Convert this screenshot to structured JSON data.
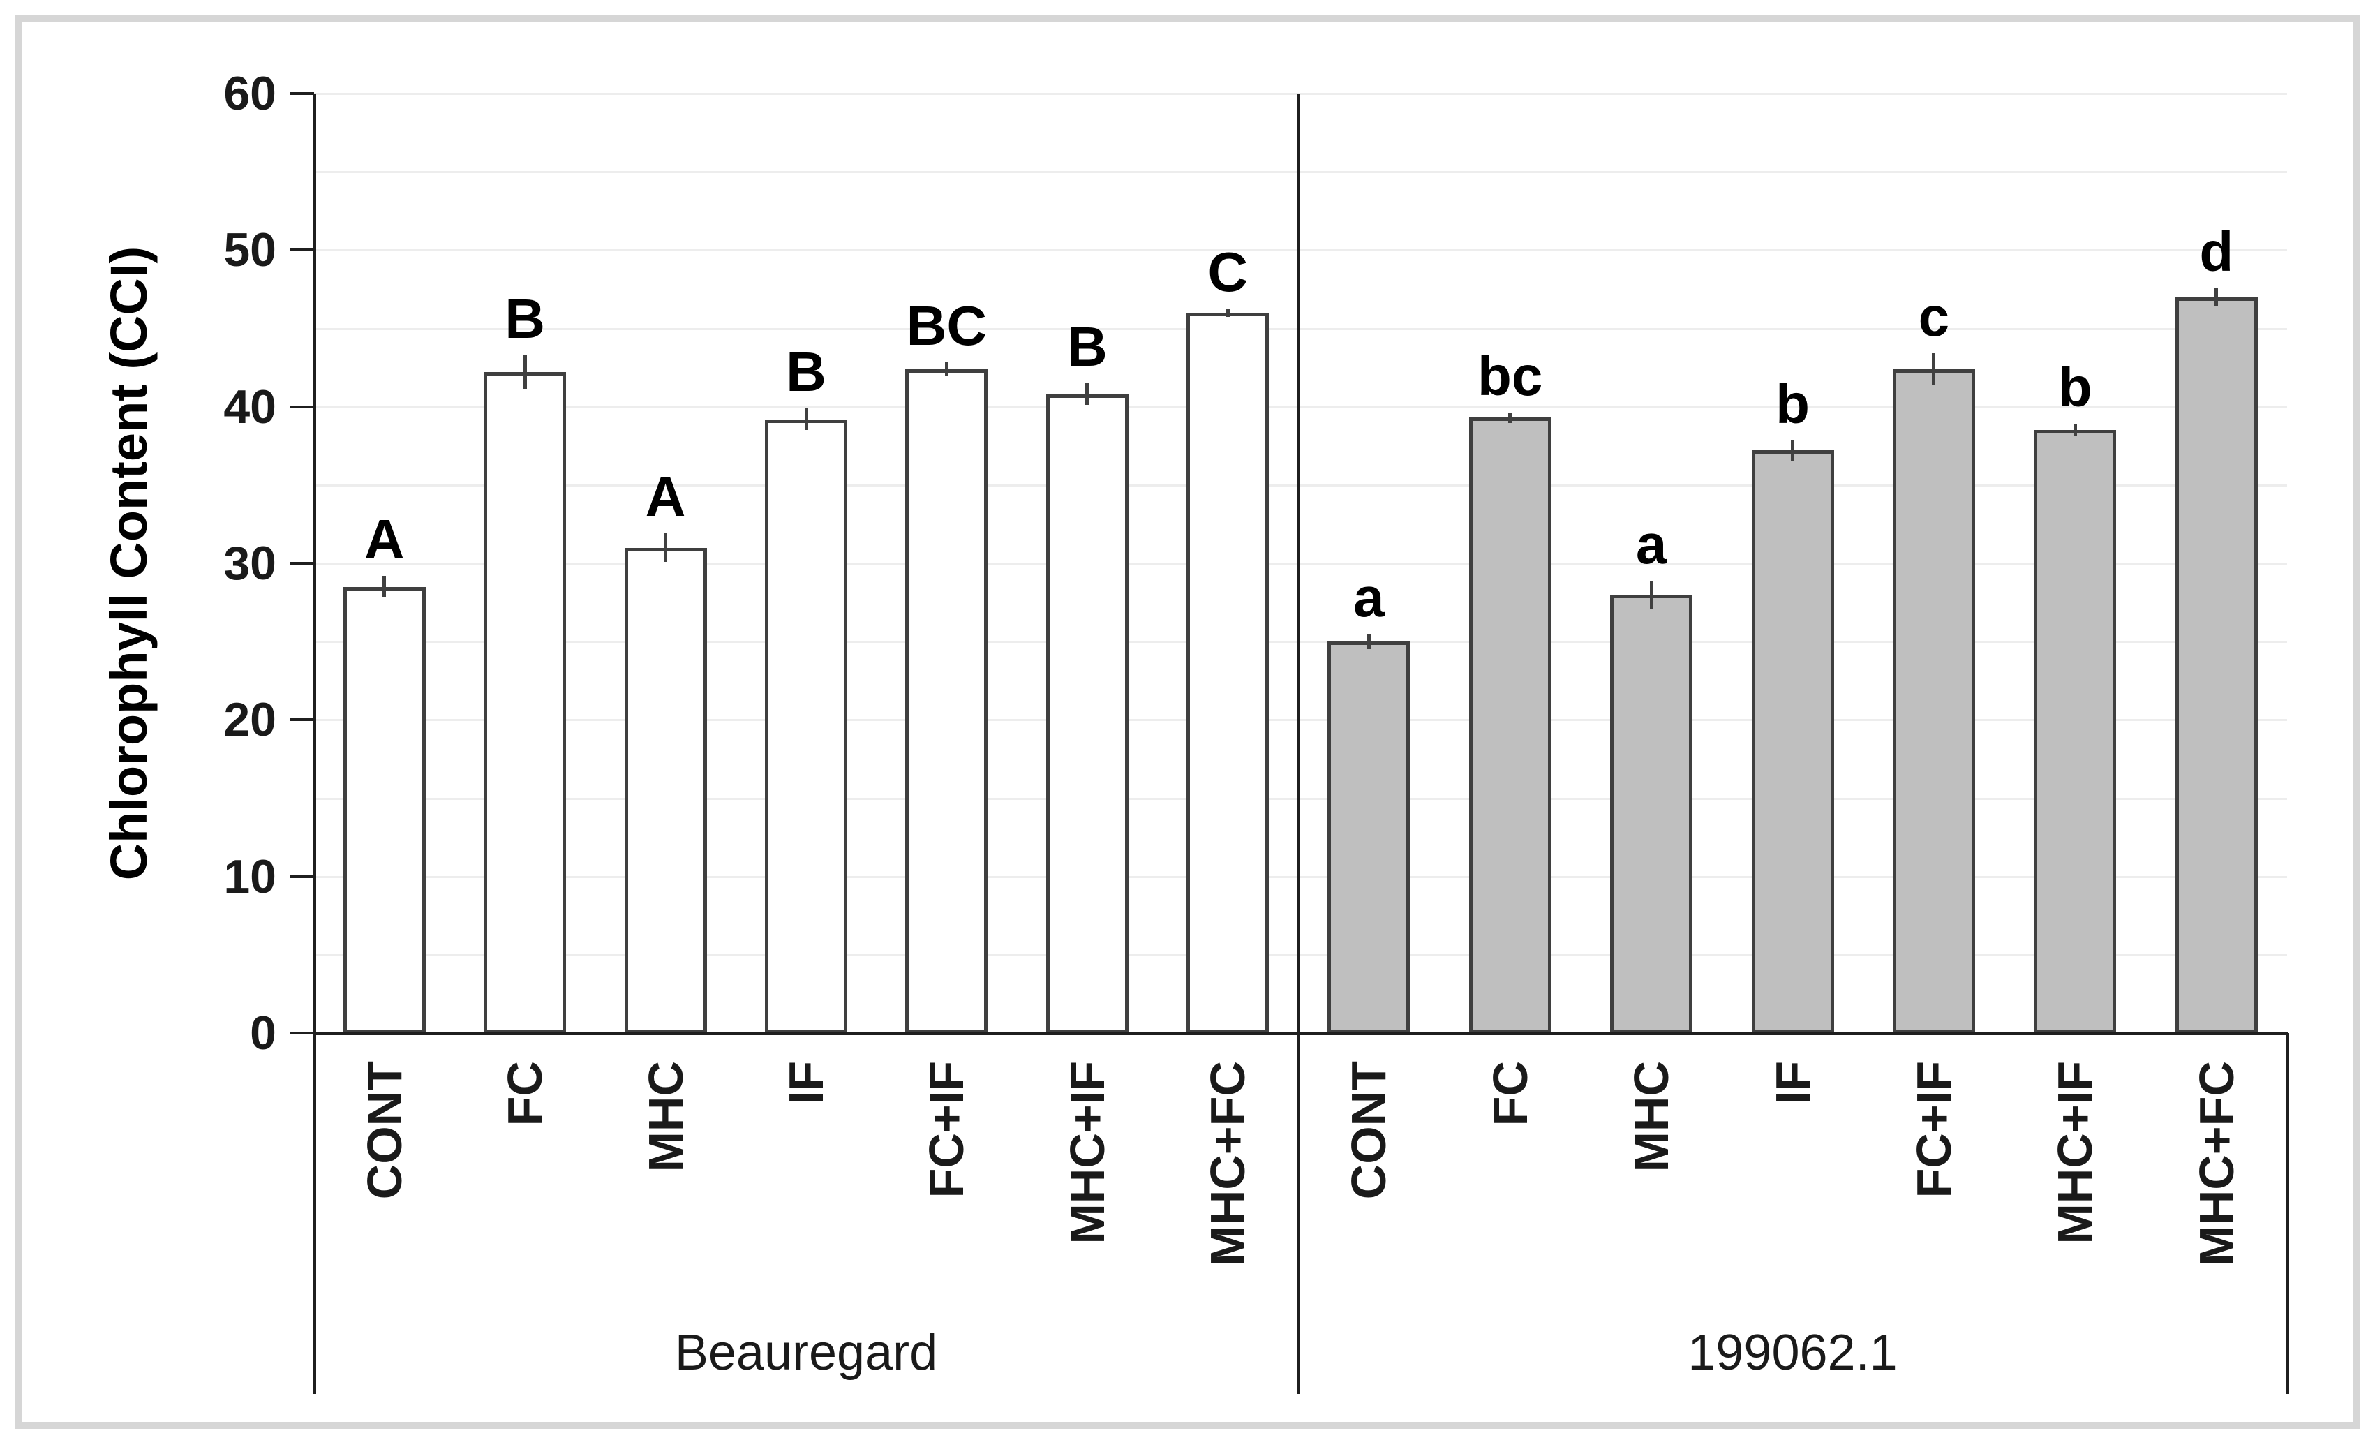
{
  "figure": {
    "background": "#FFFFFF",
    "border_color": "#D6D6D6"
  },
  "chart_data": {
    "type": "bar",
    "title": "",
    "xlabel": "",
    "ylabel": "Chlorophyll Content (CCI)",
    "ylim": [
      0,
      60
    ],
    "yticks": [
      "0",
      "10",
      "20",
      "30",
      "40",
      "50",
      "60"
    ],
    "ytick_step": 10,
    "gridline_step": 5,
    "grid": true,
    "legend_position": "none",
    "error_bars": true,
    "categories": [
      "CONT",
      "FC",
      "MHC",
      "IF",
      "FC+IF",
      "MHC+IF",
      "MHC+FC"
    ],
    "groups": [
      {
        "name": "Beauregard",
        "fill": "#FFFFFF",
        "values": [
          28.5,
          42.2,
          31.0,
          39.2,
          42.4,
          40.8,
          46.0
        ],
        "errors": [
          0.7,
          1.1,
          0.9,
          0.7,
          0.45,
          0.7,
          0.25
        ],
        "letters": [
          "A",
          "B",
          "A",
          "B",
          "BC",
          "B",
          "C"
        ]
      },
      {
        "name": "199062.1",
        "fill": "#BFBFBF",
        "values": [
          25.0,
          39.3,
          28.0,
          37.2,
          42.4,
          38.5,
          47.0
        ],
        "errors": [
          0.5,
          0.35,
          0.9,
          0.65,
          1.0,
          0.4,
          0.55
        ],
        "letters": [
          "a",
          "bc",
          "a",
          "b",
          "c",
          "b",
          "d"
        ]
      }
    ],
    "colors": {
      "bar_outline": "#3F3F3F",
      "axis": "#1F1F1F",
      "gridline": "#EDEDED",
      "error_bar": "#404040",
      "text": "#000000"
    }
  }
}
